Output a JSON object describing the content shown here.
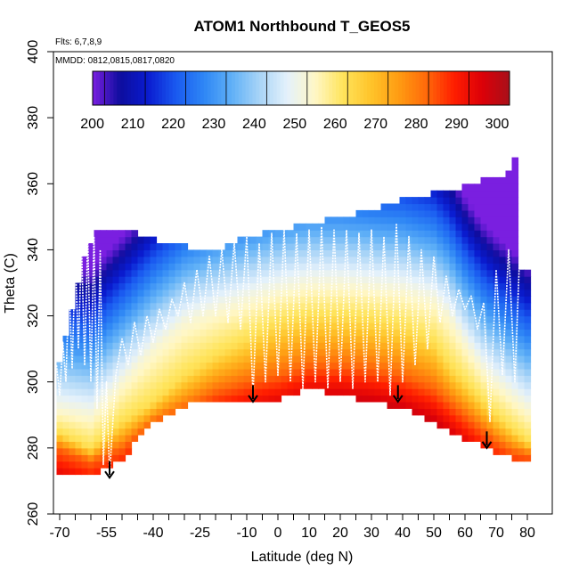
{
  "chart_data": {
    "type": "heatmap",
    "title": "ATOM1 Northbound T_GEOS5",
    "annotations": [
      "Flts: 6,7,8,9",
      "MMDD: 0812,0815,0817,0820"
    ],
    "xlabel": "Latitude (deg N)",
    "ylabel": "Theta (C)",
    "xlim": [
      -72,
      88
    ],
    "ylim": [
      260,
      400
    ],
    "xticks": [
      -70,
      -65,
      -60,
      -55,
      -50,
      -45,
      -40,
      -35,
      -30,
      -25,
      -20,
      -15,
      -10,
      -5,
      0,
      5,
      10,
      15,
      20,
      25,
      30,
      35,
      40,
      45,
      50,
      55,
      60,
      65,
      70,
      75,
      80
    ],
    "xtick_labels": [
      "-70",
      "-55",
      "-40",
      "-25",
      "-10",
      "0",
      "10",
      "20",
      "30",
      "40",
      "50",
      "60",
      "70",
      "80"
    ],
    "xtick_label_values": [
      -70,
      -55,
      -40,
      -25,
      -10,
      0,
      10,
      20,
      30,
      40,
      50,
      60,
      70,
      80
    ],
    "yticks": [
      260,
      280,
      300,
      320,
      340,
      360,
      380,
      400
    ],
    "ytick_labels": [
      "260",
      "280",
      "300",
      "320",
      "340",
      "360",
      "380",
      "400"
    ],
    "colorbar": {
      "range": [
        197,
        300
      ],
      "tick_labels": [
        "200",
        "210",
        "220",
        "230",
        "240",
        "250",
        "260",
        "270",
        "280",
        "290",
        "300"
      ],
      "tick_values": [
        200,
        210,
        220,
        230,
        240,
        250,
        260,
        270,
        280,
        290,
        300
      ],
      "colors": [
        "#7a1fe0",
        "#0d0d9e",
        "#0a1cd0",
        "#1a5af0",
        "#2e86f5",
        "#5fb0f7",
        "#a8d4f7",
        "#e4f1fb",
        "#fff7c6",
        "#ffe45c",
        "#ffc42a",
        "#ff9c12",
        "#ff6a0a",
        "#ff1e00",
        "#dd0008",
        "#a8101a"
      ]
    },
    "curtain_top": {
      "lat": [
        -71,
        -67,
        -63,
        -58,
        -52,
        -45,
        -40,
        -32,
        -25,
        -20,
        -10,
        0,
        10,
        20,
        30,
        40,
        50,
        60,
        66,
        70,
        74,
        76,
        78
      ],
      "theta": [
        302,
        318,
        335,
        345,
        345,
        345,
        343,
        342,
        340,
        339,
        344,
        346,
        348,
        350,
        352,
        355,
        357,
        359,
        361,
        362,
        363,
        367,
        334
      ]
    },
    "curtain_bottom": {
      "lat": [
        -71,
        -60,
        -55,
        -50,
        -45,
        -40,
        -35,
        -30,
        -20,
        -10,
        0,
        10,
        20,
        30,
        35,
        40,
        50,
        60,
        70,
        75,
        80
      ],
      "theta": [
        272,
        272,
        274,
        276,
        283,
        288,
        290,
        293,
        294,
        295,
        295,
        298,
        296,
        294,
        293,
        292,
        288,
        283,
        279,
        277,
        277
      ]
    },
    "arrows": [
      {
        "lat": -54,
        "theta_top": 276,
        "theta_tip": 271
      },
      {
        "lat": -8,
        "theta_top": 299,
        "theta_tip": 294
      },
      {
        "lat": 38.5,
        "theta_top": 299,
        "theta_tip": 294
      },
      {
        "lat": 67,
        "theta_top": 285,
        "theta_tip": 280
      }
    ],
    "temperature_profile": {
      "lat": [
        -71,
        -60,
        -50,
        -40,
        -30,
        -20,
        -10,
        0,
        10,
        20,
        30,
        40,
        50,
        55,
        60,
        65,
        70,
        75,
        80
      ],
      "theta_250": [
        292,
        290,
        300,
        310,
        318,
        322,
        325,
        328,
        330,
        330,
        329,
        328,
        325,
        320,
        312,
        305,
        300,
        296,
        292
      ],
      "theta_260": [
        285,
        280,
        288,
        294,
        302,
        308,
        313,
        318,
        320,
        320,
        319,
        317,
        312,
        305,
        300,
        295,
        290,
        286,
        282
      ],
      "theta_280": [
        280,
        276,
        280,
        288,
        292,
        297,
        300,
        302,
        305,
        305,
        304,
        302,
        298,
        294,
        290,
        286,
        282,
        279,
        278
      ]
    },
    "flight_track": {
      "lat": [
        -71,
        -70,
        -69,
        -68,
        -67,
        -66,
        -65,
        -64,
        -63,
        -62,
        -61,
        -60,
        -59,
        -58,
        -57,
        -56,
        -55,
        -54,
        -52,
        -50,
        -48,
        -46,
        -44,
        -42,
        -40,
        -38,
        -36,
        -34,
        -32,
        -30,
        -28,
        -26,
        -24,
        -22,
        -20,
        -18,
        -16,
        -14,
        -12,
        -10,
        -8,
        -6,
        -4,
        -2,
        0,
        2,
        4,
        6,
        8,
        10,
        12,
        14,
        16,
        18,
        20,
        22,
        24,
        26,
        28,
        30,
        32,
        34,
        36,
        38,
        40,
        42,
        44,
        46,
        48,
        50,
        52,
        54,
        56,
        58,
        60,
        62,
        64,
        66,
        68,
        70,
        72,
        74,
        76,
        78
      ],
      "theta": [
        305,
        296,
        312,
        300,
        330,
        304,
        338,
        310,
        342,
        305,
        344,
        300,
        344,
        292,
        340,
        275,
        300,
        272,
        302,
        313,
        305,
        318,
        308,
        320,
        312,
        322,
        316,
        325,
        320,
        330,
        318,
        334,
        320,
        338,
        320,
        340,
        318,
        342,
        316,
        344,
        296,
        342,
        300,
        345,
        302,
        346,
        300,
        345,
        298,
        346,
        300,
        347,
        298,
        346,
        300,
        346,
        298,
        345,
        300,
        346,
        300,
        344,
        296,
        348,
        300,
        344,
        305,
        340,
        310,
        338,
        318,
        332,
        320,
        328,
        322,
        326,
        316,
        324,
        288,
        334,
        302,
        340,
        300,
        350
      ]
    }
  }
}
